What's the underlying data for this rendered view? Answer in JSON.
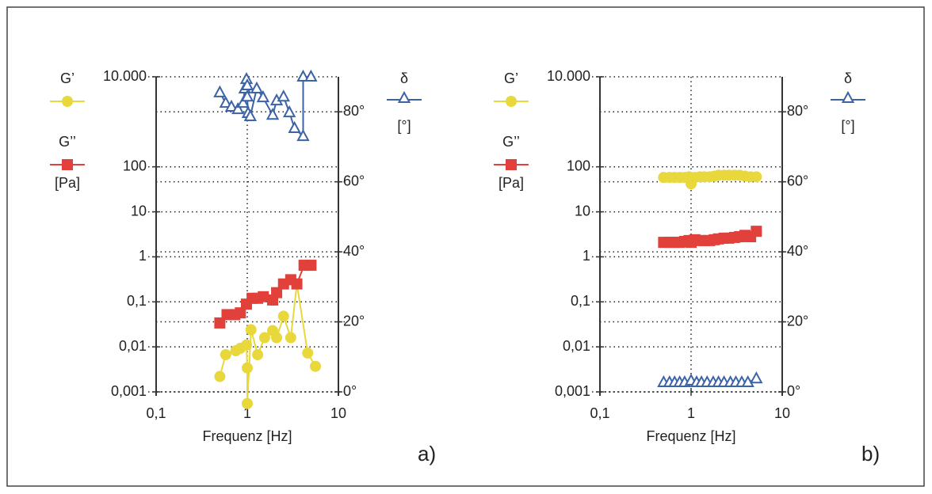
{
  "chart_data": [
    {
      "type": "line",
      "panel_label": "a)",
      "xlabel": "Frequenz [Hz]",
      "ylabel": "[Pa]",
      "y2label": "[°]",
      "xscale": "log",
      "yscale": "log",
      "grid": true,
      "xlim": [
        0.1,
        10
      ],
      "xticks": [
        {
          "value": 0.1,
          "label": "0,1"
        },
        1,
        10
      ],
      "ylim": [
        0.001,
        10000
      ],
      "yticks": [
        {
          "value": 0.001,
          "label": "0,001"
        },
        {
          "value": 0.01,
          "label": "0,01"
        },
        {
          "value": 0.1,
          "label": "0,1"
        },
        1,
        10,
        100,
        {
          "value": 10000,
          "label": "10.000"
        }
      ],
      "y2lim": [
        0,
        90
      ],
      "y2ticks": [
        {
          "value": 0,
          "label": "0°"
        },
        {
          "value": 20,
          "label": "20°"
        },
        {
          "value": 40,
          "label": "40°"
        },
        {
          "value": 60,
          "label": "60°"
        },
        {
          "value": 80,
          "label": "80°"
        }
      ],
      "series": [
        {
          "name": "G’",
          "color": "#e8d83c",
          "marker": "circle",
          "x": [
            0.5,
            0.58,
            0.75,
            0.84,
            0.98,
            1.0,
            1.0,
            1.1,
            1.3,
            1.55,
            1.9,
            2.1,
            2.5,
            3.0,
            3.5,
            4.6,
            5.6
          ],
          "values": [
            0.0022,
            0.0067,
            0.0082,
            0.0093,
            0.011,
            0.0034,
            0.00055,
            0.024,
            0.0067,
            0.016,
            0.023,
            0.016,
            0.048,
            0.016,
            0.25,
            0.0073,
            0.0037
          ]
        },
        {
          "name": "G’’",
          "color": "#e2403a",
          "marker": "square",
          "x": [
            0.5,
            0.6,
            0.73,
            0.84,
            0.98,
            1.13,
            1.3,
            1.5,
            1.9,
            2.1,
            2.5,
            3.0,
            3.5,
            4.2,
            5.0
          ],
          "values": [
            0.034,
            0.052,
            0.052,
            0.057,
            0.089,
            0.12,
            0.12,
            0.13,
            0.11,
            0.16,
            0.25,
            0.31,
            0.25,
            0.65,
            0.65
          ]
        },
        {
          "name": "δ",
          "color": "#3b63a6",
          "marker": "triangle",
          "axis": "y2",
          "x": [
            0.5,
            0.58,
            0.67,
            0.79,
            0.9,
            0.94,
            0.98,
            1.0,
            1.0,
            1.02,
            1.08,
            1.27,
            1.49,
            1.9,
            2.1,
            2.5,
            2.9,
            3.3,
            4.1,
            4.1,
            5.0
          ],
          "values": [
            85.5,
            82.5,
            81.4,
            80.7,
            82.5,
            86.6,
            89.3,
            87.5,
            84.3,
            79.6,
            78.7,
            86.6,
            84.1,
            79.1,
            83.2,
            84.3,
            79.8,
            75.3,
            73,
            90,
            90
          ]
        }
      ]
    },
    {
      "type": "line",
      "panel_label": "b)",
      "xlabel": "Frequenz [Hz]",
      "ylabel": "[Pa]",
      "y2label": "[°]",
      "xscale": "log",
      "yscale": "log",
      "grid": true,
      "xlim": [
        0.1,
        10
      ],
      "xticks": [
        {
          "value": 0.1,
          "label": "0,1"
        },
        1,
        10
      ],
      "ylim": [
        0.001,
        10000
      ],
      "yticks": [
        {
          "value": 0.001,
          "label": "0,001"
        },
        {
          "value": 0.01,
          "label": "0,01"
        },
        {
          "value": 0.1,
          "label": "0,1"
        },
        1,
        10,
        100,
        {
          "value": 10000,
          "label": "10.000"
        }
      ],
      "y2lim": [
        0,
        90
      ],
      "y2ticks": [
        {
          "value": 0,
          "label": "0°"
        },
        {
          "value": 20,
          "label": "20°"
        },
        {
          "value": 40,
          "label": "40°"
        },
        {
          "value": 60,
          "label": "60°"
        },
        {
          "value": 80,
          "label": "80°"
        }
      ],
      "series": [
        {
          "name": "G’",
          "color": "#e8d83c",
          "marker": "circle",
          "x": [
            0.5,
            0.58,
            0.66,
            0.75,
            0.85,
            0.95,
            1.0,
            1.1,
            1.25,
            1.4,
            1.6,
            1.8,
            2.0,
            2.3,
            2.6,
            3.0,
            3.4,
            3.9,
            4.5,
            5.2
          ],
          "values": [
            58,
            58,
            58,
            58,
            58,
            60,
            42,
            58,
            60,
            60,
            60,
            62,
            65,
            65,
            65,
            65,
            65,
            62,
            60,
            60
          ]
        },
        {
          "name": "G’’",
          "color": "#e2403a",
          "marker": "square",
          "x": [
            0.5,
            0.58,
            0.66,
            0.75,
            0.85,
            0.95,
            1.0,
            1.1,
            1.25,
            1.4,
            1.6,
            1.8,
            2.0,
            2.3,
            2.6,
            3.0,
            3.4,
            3.9,
            4.5,
            5.2
          ],
          "values": [
            2.1,
            2.1,
            2.1,
            2.1,
            2.2,
            2.3,
            2.1,
            2.4,
            2.3,
            2.3,
            2.3,
            2.4,
            2.5,
            2.6,
            2.6,
            2.7,
            2.8,
            3.0,
            2.8,
            3.7
          ]
        },
        {
          "name": "δ",
          "color": "#3b63a6",
          "marker": "triangle",
          "axis": "y2",
          "x": [
            0.5,
            0.58,
            0.66,
            0.75,
            0.85,
            1.0,
            1.15,
            1.3,
            1.5,
            1.75,
            2.0,
            2.3,
            2.7,
            3.1,
            3.6,
            4.2,
            5.2
          ],
          "values": [
            2.7,
            2.7,
            2.7,
            2.7,
            2.7,
            3.2,
            2.7,
            2.7,
            2.7,
            2.7,
            2.7,
            2.7,
            2.7,
            2.7,
            2.7,
            2.7,
            3.8
          ]
        }
      ]
    }
  ]
}
